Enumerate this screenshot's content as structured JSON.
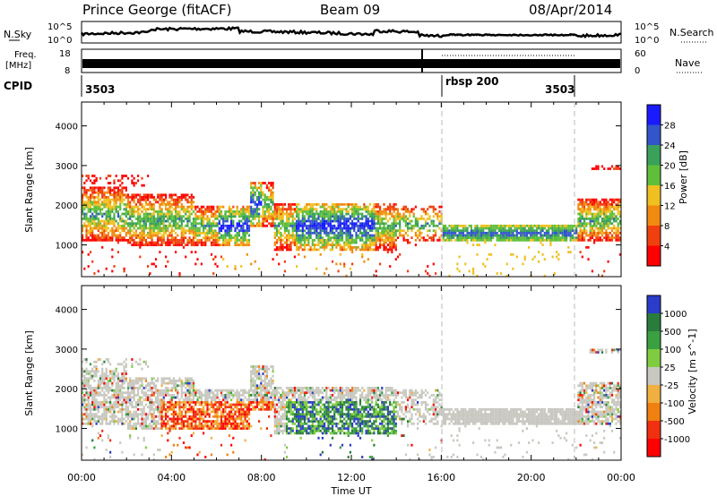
{
  "header": {
    "station": "Prince George (fitACF)",
    "beam": "Beam 09",
    "date": "08/Apr/2014"
  },
  "colors": {
    "power": [
      "#1a1aff",
      "#3355cc",
      "#3aa05a",
      "#5fbf3a",
      "#f0c020",
      "#f08a10",
      "#f04010",
      "#ff0000"
    ],
    "velocity": [
      "#2a3cc8",
      "#2a7c3c",
      "#3aa040",
      "#80cc40",
      "#c8c8c0",
      "#f0b040",
      "#f08010",
      "#f03010",
      "#ff0000"
    ]
  },
  "chart_data": [
    {
      "type": "line",
      "panel": "noise",
      "left_label": "N.Sky",
      "right_label": "N.Search",
      "left_ticks": [
        "10^5",
        "10^0"
      ],
      "right_ticks": [
        "10^5",
        "10^0"
      ]
    },
    {
      "type": "line",
      "panel": "frequency",
      "left_label_line1": "Freq.",
      "left_label_line2": "[MHz]",
      "right_label": "Nave",
      "left_ticks": [
        "18",
        "8"
      ],
      "right_ticks": [
        "60",
        "0"
      ]
    },
    {
      "type": "table",
      "panel": "cpid",
      "label": "CPID",
      "entries": [
        {
          "text": "3503",
          "start_hour": 0
        },
        {
          "text": "rbsp 200",
          "start_hour": 16
        },
        {
          "text": "3503",
          "start_hour": 22
        }
      ],
      "mode_changes_hours": [
        16,
        22
      ]
    },
    {
      "type": "heatmap",
      "panel": "power",
      "ylabel": "Slant Range [km]",
      "yticks": [
        1000,
        2000,
        3000,
        4000
      ],
      "ylim": [
        200,
        4600
      ],
      "xlim": [
        0,
        24
      ],
      "colorbar_label": "Power [dB]",
      "colorbar_ticks": [
        "28",
        "24",
        "20",
        "16",
        "12",
        "8",
        "4"
      ]
    },
    {
      "type": "heatmap",
      "panel": "velocity",
      "ylabel": "Slant Range [km]",
      "yticks": [
        1000,
        2000,
        3000,
        4000
      ],
      "ylim": [
        200,
        4600
      ],
      "xlim": [
        0,
        24
      ],
      "xlabel": "Time UT",
      "xticks": [
        "00:00",
        "04:00",
        "08:00",
        "12:00",
        "16:00",
        "20:00",
        "00:00"
      ],
      "colorbar_label": "Velocity [m s^-1]",
      "colorbar_ticks": [
        "1000",
        "500",
        "100",
        "25",
        "-25",
        "-100",
        "-500",
        "-1000"
      ]
    }
  ]
}
